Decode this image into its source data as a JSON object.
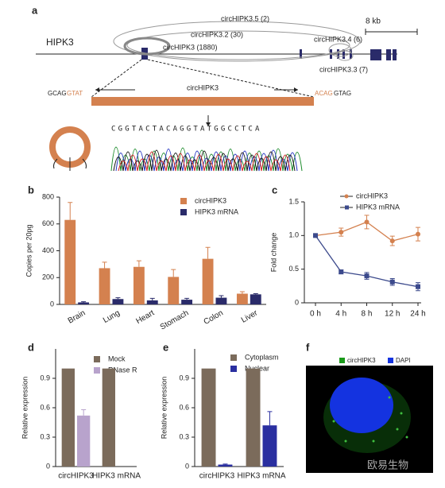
{
  "panel_labels": [
    "a",
    "b",
    "c",
    "d",
    "e",
    "f"
  ],
  "diagram_a": {
    "gene": "HIPK3",
    "scale": "8 kb",
    "isoforms": [
      "circHIPK3.5 (2)",
      "circHIPK3.2 (30)",
      "circHIPK3 (1880)",
      "circHIPK3.4 (6)",
      "circHIPK3.3 (7)"
    ],
    "junction": {
      "left_intron": "GCAG",
      "left_exon": "GTAT",
      "label": "circHIPK3",
      "right_exon": "ACAG",
      "right_intron": "GTAG"
    },
    "sequence": "CGGTACTACAGGTATGGCCTCA"
  },
  "chart_data": [
    {
      "type": "bar",
      "categories": [
        "Brain",
        "Lung",
        "Heart",
        "Stomach",
        "Colon",
        "Liver"
      ],
      "y_label": "Copies per 20pg",
      "series": [
        {
          "name": "circHIPK3",
          "color": "#d4814f",
          "values": [
            630,
            270,
            280,
            205,
            340,
            80
          ],
          "errors": [
            130,
            45,
            45,
            55,
            85,
            15
          ]
        },
        {
          "name": "HIPK3 mRNA",
          "color": "#2a2b6a",
          "values": [
            15,
            40,
            30,
            35,
            50,
            75
          ],
          "errors": [
            5,
            10,
            15,
            10,
            15,
            5
          ]
        }
      ],
      "ylim": [
        0,
        800
      ],
      "yticks": [
        0,
        200,
        400,
        600,
        800
      ],
      "grid": false
    },
    {
      "type": "line",
      "categories": [
        "0 h",
        "4 h",
        "8 h",
        "12 h",
        "24 h"
      ],
      "y_label": "Fold change",
      "series": [
        {
          "name": "circHIPK3",
          "color": "#d4814f",
          "marker": "circle",
          "values": [
            1.0,
            1.05,
            1.2,
            0.92,
            1.02
          ],
          "errors": [
            0.02,
            0.06,
            0.1,
            0.07,
            0.1
          ]
        },
        {
          "name": "HIPK3 mRNA",
          "color": "#3c4a8c",
          "marker": "square",
          "values": [
            1.0,
            0.46,
            0.4,
            0.31,
            0.24
          ],
          "errors": [
            0.02,
            0.03,
            0.05,
            0.05,
            0.06
          ]
        }
      ],
      "ylim": [
        0,
        1.5
      ],
      "yticks": [
        0,
        0.5,
        {
          "value": 1,
          "label": "1.0"
        },
        1.5
      ],
      "grid": false
    },
    {
      "type": "bar",
      "categories": [
        "circHIPK3",
        "HIPK3 mRNA"
      ],
      "y_label": "Relative expression",
      "series": [
        {
          "name": "Mock",
          "color": "#7b6b5b",
          "values": [
            1,
            1
          ],
          "errors": [
            null,
            null
          ]
        },
        {
          "name": "RNase R",
          "color": "#b8a3cc",
          "values": [
            0.52,
            0
          ],
          "errors": [
            0.06,
            null
          ]
        }
      ],
      "ylim": [
        0,
        1.2
      ],
      "yticks": [
        0,
        0.3,
        0.6,
        0.9
      ],
      "grid": false
    },
    {
      "type": "bar",
      "categories": [
        "circHIPK3",
        "HIPK3 mRNA"
      ],
      "y_label": "Relative expression",
      "series": [
        {
          "name": "Cytoplasm",
          "color": "#7b6b5b",
          "values": [
            1,
            1
          ],
          "errors": [
            null,
            null
          ]
        },
        {
          "name": "Nuclear",
          "color": "#2a2fa0",
          "values": [
            0.02,
            0.42
          ],
          "errors": [
            0.005,
            0.14
          ]
        }
      ],
      "ylim": [
        0,
        1.2
      ],
      "yticks": [
        0,
        0.3,
        0.6,
        0.9
      ],
      "grid": false
    }
  ],
  "image_f": {
    "legend": [
      "circHIPK3",
      "DAPI"
    ]
  },
  "watermark": "欧易生物"
}
